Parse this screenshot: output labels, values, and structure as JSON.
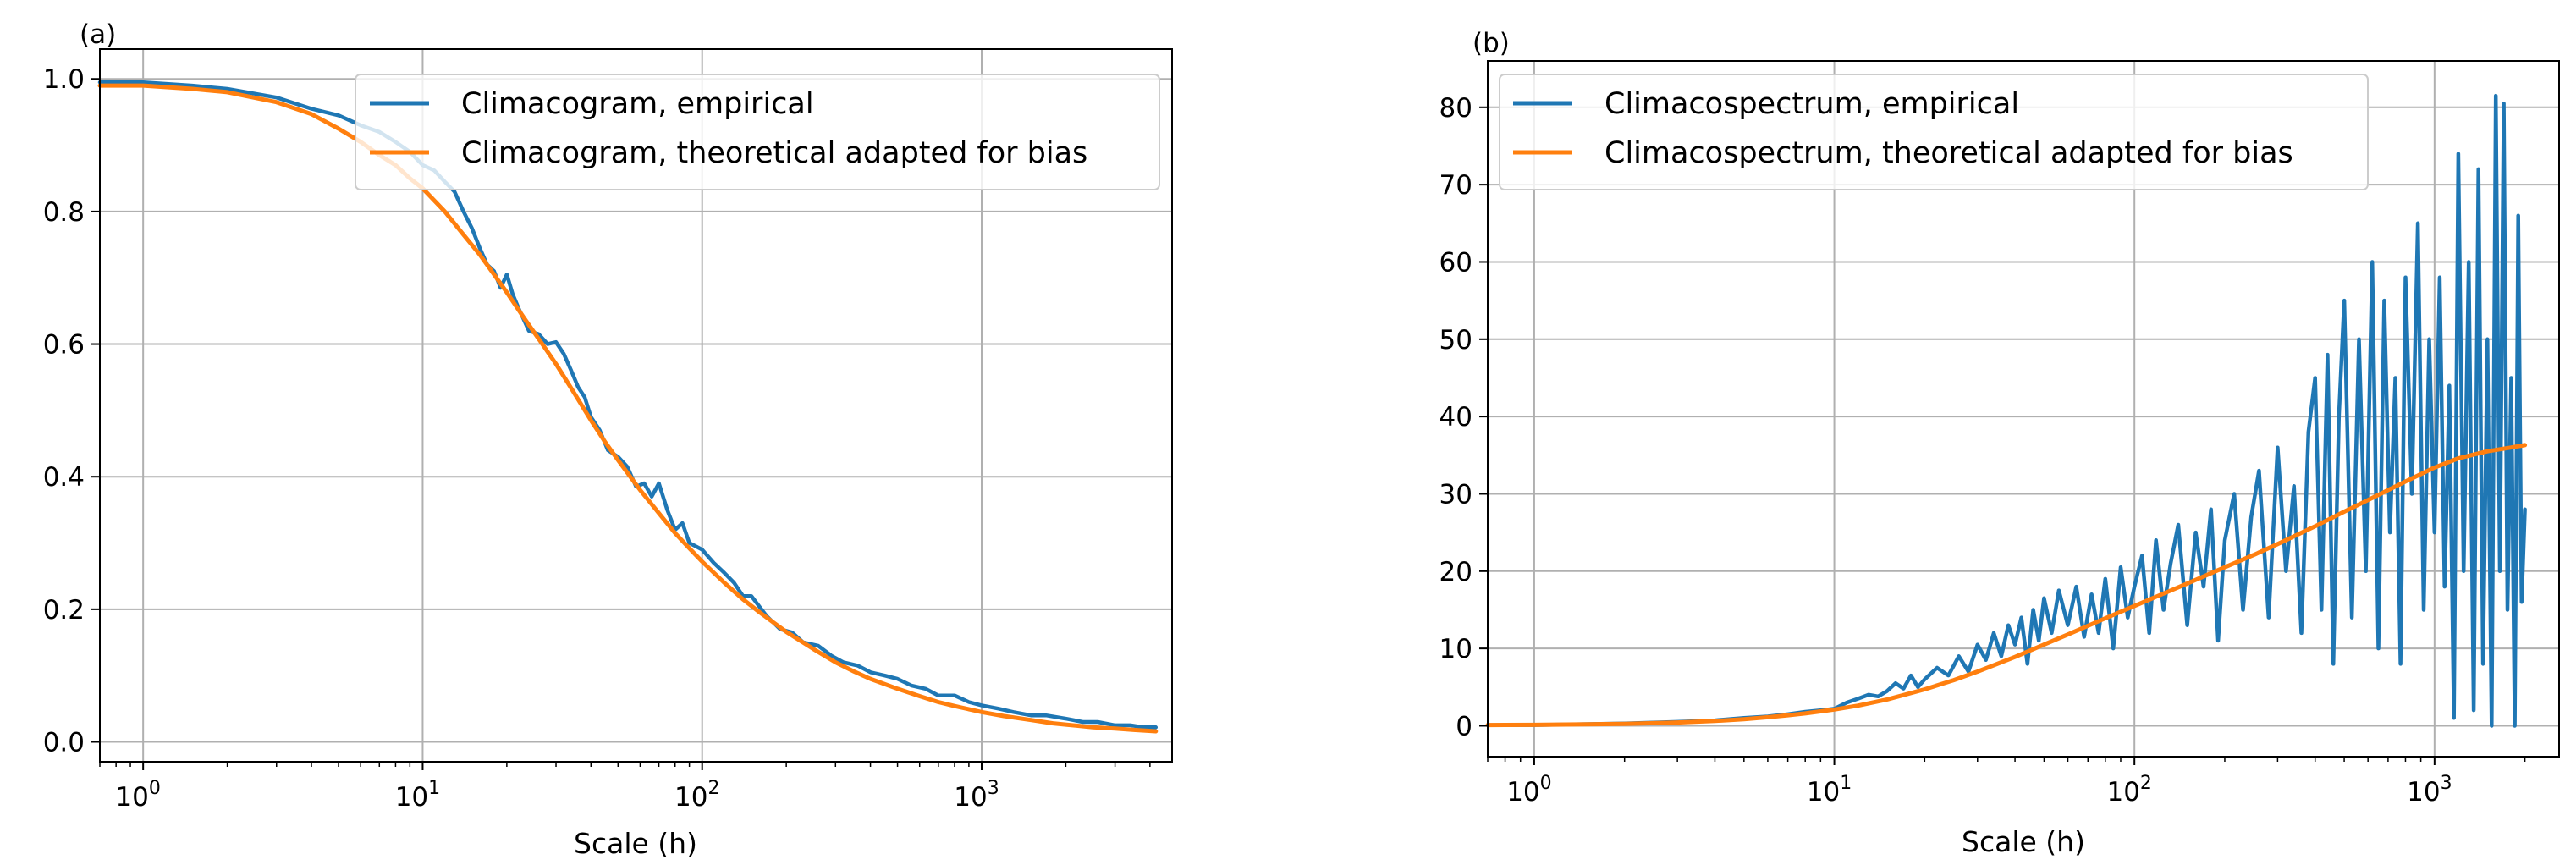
{
  "colors": {
    "empirical": "#1f77b4",
    "theoretical": "#ff7f0e",
    "grid": "#b0b0b0"
  },
  "chart_data": [
    {
      "id": "a",
      "panel_label": "(a)",
      "type": "line",
      "xscale": "log",
      "xlim": [
        0.7,
        4800
      ],
      "ylim": [
        -0.03,
        1.045
      ],
      "xlabel": "Scale (h)",
      "ylabel": "",
      "x_ticks": [
        {
          "value": 1,
          "base": "10",
          "exp": "0"
        },
        {
          "value": 10,
          "base": "10",
          "exp": "1"
        },
        {
          "value": 100,
          "base": "10",
          "exp": "2"
        },
        {
          "value": 1000,
          "base": "10",
          "exp": "3"
        }
      ],
      "y_ticks": [
        {
          "value": 0.0,
          "label": "0.0"
        },
        {
          "value": 0.2,
          "label": "0.2"
        },
        {
          "value": 0.4,
          "label": "0.4"
        },
        {
          "value": 0.6,
          "label": "0.6"
        },
        {
          "value": 0.8,
          "label": "0.8"
        },
        {
          "value": 1.0,
          "label": "1.0"
        }
      ],
      "grid": true,
      "legend_position": "top-right",
      "series": [
        {
          "name": "Climacogram, empirical",
          "color_key": "empirical",
          "x": [
            0.7,
            1,
            1.5,
            2,
            3,
            4,
            5,
            6,
            7,
            8,
            9,
            10,
            11,
            12,
            13,
            14,
            15,
            16,
            17,
            18,
            19,
            20,
            21,
            22,
            24,
            26,
            28,
            30,
            32,
            34,
            36,
            38,
            40,
            43,
            46,
            50,
            54,
            58,
            62,
            66,
            70,
            75,
            80,
            85,
            90,
            100,
            110,
            120,
            130,
            140,
            150,
            170,
            190,
            210,
            230,
            260,
            290,
            320,
            360,
            400,
            450,
            500,
            560,
            630,
            700,
            800,
            900,
            1000,
            1150,
            1300,
            1500,
            1700,
            2000,
            2300,
            2600,
            3000,
            3400,
            3800,
            4200
          ],
          "y": [
            0.995,
            0.995,
            0.99,
            0.985,
            0.972,
            0.955,
            0.945,
            0.93,
            0.92,
            0.905,
            0.89,
            0.87,
            0.862,
            0.845,
            0.83,
            0.8,
            0.775,
            0.745,
            0.72,
            0.71,
            0.685,
            0.705,
            0.675,
            0.655,
            0.62,
            0.615,
            0.6,
            0.603,
            0.585,
            0.56,
            0.535,
            0.52,
            0.49,
            0.47,
            0.44,
            0.43,
            0.415,
            0.385,
            0.39,
            0.37,
            0.39,
            0.35,
            0.32,
            0.33,
            0.3,
            0.29,
            0.27,
            0.255,
            0.24,
            0.22,
            0.22,
            0.19,
            0.17,
            0.165,
            0.15,
            0.145,
            0.13,
            0.12,
            0.115,
            0.105,
            0.1,
            0.095,
            0.085,
            0.08,
            0.07,
            0.07,
            0.06,
            0.055,
            0.05,
            0.045,
            0.04,
            0.04,
            0.035,
            0.03,
            0.03,
            0.025,
            0.025,
            0.022,
            0.022
          ]
        },
        {
          "name": "Climacogram, theoretical adapted for bias",
          "color_key": "theoretical",
          "x": [
            0.7,
            1,
            1.5,
            2,
            3,
            4,
            5,
            6,
            7,
            8,
            9,
            10,
            12,
            14,
            16,
            18,
            20,
            23,
            26,
            30,
            35,
            40,
            45,
            50,
            60,
            70,
            80,
            90,
            100,
            120,
            140,
            160,
            180,
            200,
            250,
            300,
            350,
            400,
            500,
            600,
            700,
            800,
            1000,
            1200,
            1500,
            1800,
            2000,
            2500,
            3000,
            3500,
            4200
          ],
          "y": [
            0.99,
            0.99,
            0.985,
            0.98,
            0.965,
            0.947,
            0.925,
            0.905,
            0.885,
            0.87,
            0.85,
            0.835,
            0.8,
            0.765,
            0.735,
            0.705,
            0.678,
            0.64,
            0.608,
            0.57,
            0.525,
            0.485,
            0.452,
            0.425,
            0.38,
            0.345,
            0.315,
            0.292,
            0.272,
            0.24,
            0.215,
            0.196,
            0.18,
            0.166,
            0.14,
            0.12,
            0.106,
            0.095,
            0.08,
            0.069,
            0.06,
            0.054,
            0.045,
            0.039,
            0.033,
            0.028,
            0.026,
            0.022,
            0.02,
            0.018,
            0.016
          ]
        }
      ]
    },
    {
      "id": "b",
      "panel_label": "(b)",
      "type": "line",
      "xscale": "log",
      "xlim": [
        0.7,
        2600
      ],
      "ylim": [
        -4,
        86
      ],
      "xlabel": "Scale (h)",
      "ylabel": "",
      "x_ticks": [
        {
          "value": 1,
          "base": "10",
          "exp": "0"
        },
        {
          "value": 10,
          "base": "10",
          "exp": "1"
        },
        {
          "value": 100,
          "base": "10",
          "exp": "2"
        },
        {
          "value": 1000,
          "base": "10",
          "exp": "3"
        }
      ],
      "y_ticks": [
        {
          "value": 0,
          "label": "0"
        },
        {
          "value": 10,
          "label": "10"
        },
        {
          "value": 20,
          "label": "20"
        },
        {
          "value": 30,
          "label": "30"
        },
        {
          "value": 40,
          "label": "40"
        },
        {
          "value": 50,
          "label": "50"
        },
        {
          "value": 60,
          "label": "60"
        },
        {
          "value": 70,
          "label": "70"
        },
        {
          "value": 80,
          "label": "80"
        }
      ],
      "grid": true,
      "legend_position": "top-left",
      "series": [
        {
          "name": "Climacospectrum, empirical",
          "color_key": "empirical",
          "x": [
            0.7,
            1,
            2,
            3,
            4,
            5,
            6,
            7,
            8,
            9,
            10,
            11,
            12,
            13,
            14,
            15,
            16,
            17,
            18,
            19,
            20,
            22,
            24,
            26,
            28,
            30,
            32,
            34,
            36,
            38,
            40,
            42,
            44,
            46,
            48,
            50,
            53,
            56,
            60,
            64,
            68,
            72,
            76,
            80,
            85,
            90,
            95,
            100,
            106,
            112,
            118,
            125,
            132,
            140,
            150,
            160,
            170,
            180,
            190,
            200,
            215,
            230,
            245,
            260,
            280,
            300,
            320,
            340,
            360,
            380,
            400,
            420,
            440,
            460,
            480,
            500,
            530,
            560,
            590,
            620,
            650,
            680,
            710,
            740,
            770,
            800,
            840,
            880,
            920,
            960,
            1000,
            1040,
            1080,
            1120,
            1160,
            1200,
            1250,
            1300,
            1350,
            1400,
            1450,
            1500,
            1550,
            1600,
            1650,
            1700,
            1750,
            1800,
            1850,
            1900,
            1950,
            2000
          ],
          "y": [
            0.1,
            0.1,
            0.3,
            0.5,
            0.7,
            1.0,
            1.2,
            1.5,
            1.8,
            2.0,
            2.2,
            3.0,
            3.5,
            4.0,
            3.8,
            4.5,
            5.5,
            4.8,
            6.5,
            5.0,
            6.0,
            7.5,
            6.5,
            9.0,
            7.0,
            10.5,
            8.5,
            12.0,
            9.0,
            13.0,
            10.5,
            14.0,
            8.0,
            15.0,
            11.0,
            16.5,
            12.0,
            17.5,
            13.0,
            18.0,
            11.5,
            17.0,
            12.0,
            19.0,
            10.0,
            20.5,
            14.0,
            18.0,
            22.0,
            12.0,
            24.0,
            15.0,
            21.0,
            26.0,
            13.0,
            25.0,
            18.0,
            28.0,
            11.0,
            24.0,
            30.0,
            15.0,
            27.0,
            33.0,
            14.0,
            36.0,
            20.0,
            31.0,
            12.0,
            38.0,
            45.0,
            15.0,
            48.0,
            8.0,
            40.0,
            55.0,
            14.0,
            50.0,
            20.0,
            60.0,
            10.0,
            55.0,
            25.0,
            45.0,
            8.0,
            58.0,
            30.0,
            65.0,
            15.0,
            50.0,
            25.0,
            58.0,
            18.0,
            44.0,
            1.0,
            74.0,
            20.0,
            60.0,
            2.0,
            72.0,
            8.0,
            50.0,
            0.0,
            81.5,
            20.0,
            80.5,
            15.0,
            45.0,
            0.0,
            66.0,
            16.0,
            28.0
          ]
        },
        {
          "name": "Climacospectrum, theoretical adapted for bias",
          "color_key": "theoretical",
          "x": [
            0.7,
            1,
            1.5,
            2,
            3,
            4,
            5,
            6,
            7,
            8,
            10,
            12,
            15,
            20,
            25,
            30,
            40,
            50,
            60,
            80,
            100,
            120,
            150,
            200,
            250,
            300,
            400,
            500,
            600,
            800,
            1000,
            1200,
            1500,
            1800,
            2000
          ],
          "y": [
            0.1,
            0.12,
            0.18,
            0.25,
            0.42,
            0.62,
            0.85,
            1.1,
            1.35,
            1.6,
            2.1,
            2.6,
            3.4,
            4.7,
            5.9,
            7.0,
            8.9,
            10.5,
            11.8,
            13.9,
            15.5,
            16.8,
            18.4,
            20.5,
            22.1,
            23.5,
            25.8,
            27.7,
            29.2,
            31.6,
            33.4,
            34.6,
            35.5,
            36.0,
            36.3
          ]
        }
      ]
    }
  ]
}
